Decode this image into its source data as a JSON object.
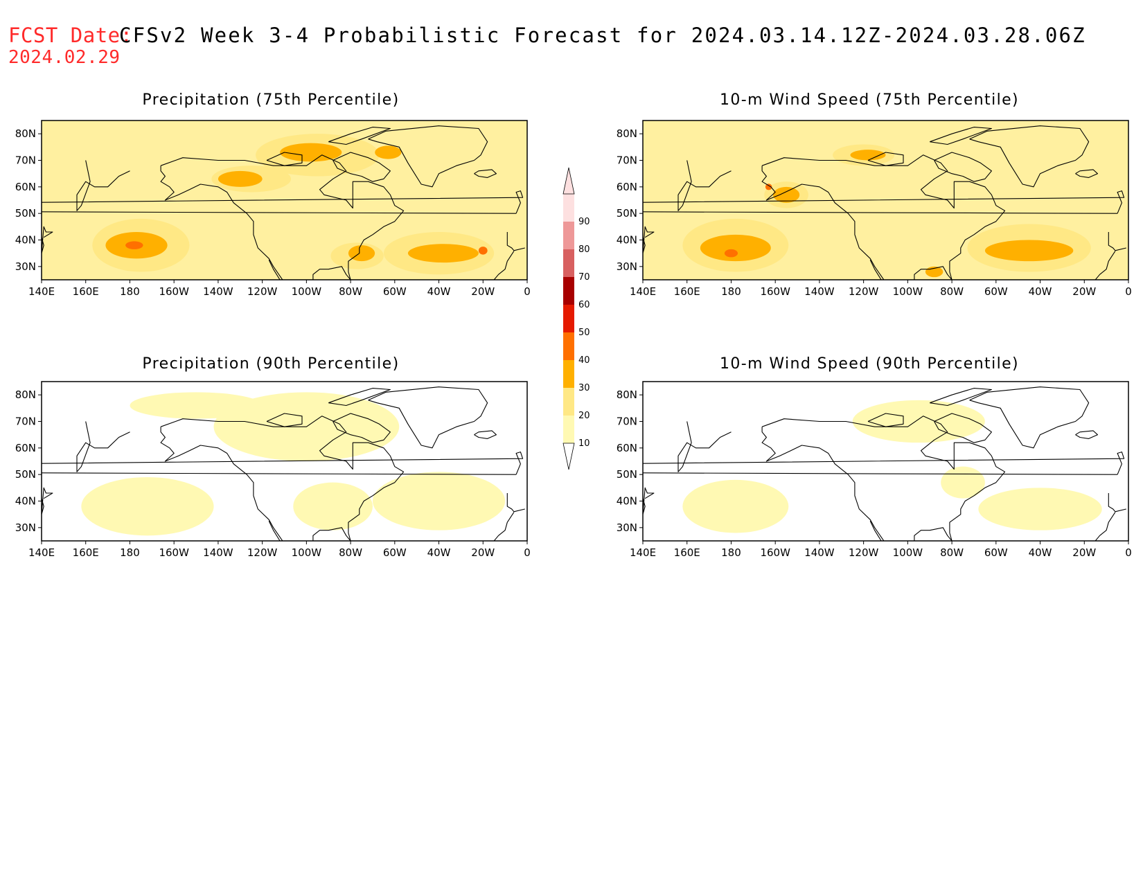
{
  "header": {
    "fcst_label": "FCST Date:",
    "fcst_date": "2024.02.29",
    "title": "CFSv2 Week 3-4 Probabilistic Forecast for 2024.03.14.12Z-2024.03.28.06Z"
  },
  "axes": {
    "x_ticks": [
      "140E",
      "160E",
      "180",
      "160W",
      "140W",
      "120W",
      "100W",
      "80W",
      "60W",
      "40W",
      "20W",
      "0"
    ],
    "y_ticks": [
      "80N",
      "70N",
      "60N",
      "50N",
      "40N",
      "30N"
    ]
  },
  "colorbar": {
    "levels": [
      "10",
      "20",
      "30",
      "40",
      "50",
      "60",
      "70",
      "80",
      "90"
    ],
    "colors": [
      "#fff9b3",
      "#ffe885",
      "#ffb000",
      "#ff7000",
      "#e51a00",
      "#a80000",
      "#d86060",
      "#ee9898",
      "#fde0e0"
    ]
  },
  "panels": [
    {
      "title": "Precipitation (75th Percentile)",
      "bg_color": "#fff0a0",
      "regions": [
        {
          "level": "20",
          "lon": -175,
          "lat": 38,
          "rlon": 22,
          "rlat": 10
        },
        {
          "level": "20",
          "lon": -95,
          "lat": 72,
          "rlon": 28,
          "rlat": 8
        },
        {
          "level": "20",
          "lon": -40,
          "lat": 35,
          "rlon": 25,
          "rlat": 8
        },
        {
          "level": "20",
          "lon": -125,
          "lat": 63,
          "rlon": 18,
          "rlat": 5
        },
        {
          "level": "20",
          "lon": -77,
          "lat": 34,
          "rlon": 12,
          "rlat": 5
        },
        {
          "level": "30",
          "lon": -177,
          "lat": 38,
          "rlon": 14,
          "rlat": 5
        },
        {
          "level": "30",
          "lon": -98,
          "lat": 73,
          "rlon": 14,
          "rlat": 3.5
        },
        {
          "level": "30",
          "lon": -38,
          "lat": 35,
          "rlon": 16,
          "rlat": 3.5
        },
        {
          "level": "30",
          "lon": -130,
          "lat": 63,
          "rlon": 10,
          "rlat": 3
        },
        {
          "level": "30",
          "lon": -63,
          "lat": 73,
          "rlon": 6,
          "rlat": 2.5
        },
        {
          "level": "30",
          "lon": -75,
          "lat": 35,
          "rlon": 6,
          "rlat": 3
        },
        {
          "level": "40",
          "lon": -178,
          "lat": 38,
          "rlon": 4,
          "rlat": 1.5
        },
        {
          "level": "40",
          "lon": -20,
          "lat": 36,
          "rlon": 2,
          "rlat": 1.5
        }
      ]
    },
    {
      "title": "10-m Wind Speed (75th Percentile)",
      "bg_color": "#fff0a0",
      "regions": [
        {
          "level": "20",
          "lon": -178,
          "lat": 38,
          "rlon": 24,
          "rlat": 10
        },
        {
          "level": "20",
          "lon": -45,
          "lat": 37,
          "rlon": 28,
          "rlat": 9
        },
        {
          "level": "20",
          "lon": -155,
          "lat": 57,
          "rlon": 10,
          "rlat": 5
        },
        {
          "level": "20",
          "lon": -120,
          "lat": 72,
          "rlon": 14,
          "rlat": 4
        },
        {
          "level": "30",
          "lon": -178,
          "lat": 37,
          "rlon": 16,
          "rlat": 5
        },
        {
          "level": "30",
          "lon": -45,
          "lat": 36,
          "rlon": 20,
          "rlat": 4
        },
        {
          "level": "30",
          "lon": -155,
          "lat": 57,
          "rlon": 6,
          "rlat": 3
        },
        {
          "level": "30",
          "lon": -118,
          "lat": 72,
          "rlon": 8,
          "rlat": 2
        },
        {
          "level": "30",
          "lon": -88,
          "lat": 28,
          "rlon": 4,
          "rlat": 2
        },
        {
          "level": "40",
          "lon": -180,
          "lat": 35,
          "rlon": 3,
          "rlat": 1.5
        },
        {
          "level": "40",
          "lon": -163,
          "lat": 60,
          "rlon": 1.5,
          "rlat": 1.2
        }
      ]
    },
    {
      "title": "Precipitation (90th Percentile)",
      "bg_color": "#ffffff",
      "regions": [
        {
          "level": "10",
          "lon": -172,
          "lat": 38,
          "rlon": 30,
          "rlat": 11
        },
        {
          "level": "10",
          "lon": -100,
          "lat": 68,
          "rlon": 42,
          "rlat": 13
        },
        {
          "level": "10",
          "lon": -40,
          "lat": 40,
          "rlon": 30,
          "rlat": 11
        },
        {
          "level": "10",
          "lon": -150,
          "lat": 76,
          "rlon": 30,
          "rlat": 5
        },
        {
          "level": "10",
          "lon": -88,
          "lat": 38,
          "rlon": 18,
          "rlat": 9
        }
      ]
    },
    {
      "title": "10-m Wind Speed (90th Percentile)",
      "bg_color": "#ffffff",
      "regions": [
        {
          "level": "10",
          "lon": -178,
          "lat": 38,
          "rlon": 24,
          "rlat": 10
        },
        {
          "level": "10",
          "lon": -40,
          "lat": 37,
          "rlon": 28,
          "rlat": 8
        },
        {
          "level": "10",
          "lon": -95,
          "lat": 70,
          "rlon": 30,
          "rlat": 8
        },
        {
          "level": "10",
          "lon": -75,
          "lat": 47,
          "rlon": 10,
          "rlat": 6
        }
      ]
    }
  ],
  "coastlines": [
    {
      "name": "north-america",
      "points": [
        [
          -166,
          68
        ],
        [
          -156,
          71
        ],
        [
          -140,
          70
        ],
        [
          -128,
          70
        ],
        [
          -115,
          68
        ],
        [
          -100,
          68
        ],
        [
          -93,
          72
        ],
        [
          -85,
          69
        ],
        [
          -82,
          66
        ],
        [
          -88,
          63
        ],
        [
          -94,
          59
        ],
        [
          -92,
          57
        ],
        [
          -82,
          55
        ],
        [
          -79,
          52
        ],
        [
          -79,
          62
        ],
        [
          -72,
          62
        ],
        [
          -65,
          60
        ],
        [
          -62,
          57
        ],
        [
          -60,
          53
        ],
        [
          -56,
          51
        ],
        [
          -60,
          47
        ],
        [
          -65,
          45
        ],
        [
          -70,
          42
        ],
        [
          -74,
          40
        ],
        [
          -76,
          37
        ],
        [
          -76,
          35
        ],
        [
          -81,
          32
        ],
        [
          -81,
          28
        ],
        [
          -80,
          25
        ],
        [
          -82,
          27
        ],
        [
          -84,
          30
        ],
        [
          -90,
          29
        ],
        [
          -94,
          29
        ],
        [
          -97,
          27
        ],
        [
          -97,
          25
        ],
        [
          -105,
          23
        ],
        [
          -110,
          24
        ],
        [
          -115,
          30
        ],
        [
          -117,
          33
        ],
        [
          -122,
          37
        ],
        [
          -124,
          42
        ],
        [
          -124,
          47
        ],
        [
          -127,
          50
        ],
        [
          -133,
          54
        ],
        [
          -136,
          58
        ],
        [
          -140,
          60
        ],
        [
          -148,
          61
        ],
        [
          -153,
          59
        ],
        [
          -158,
          57
        ],
        [
          -164,
          55
        ],
        [
          -160,
          58
        ],
        [
          -162,
          60
        ],
        [
          -166,
          62
        ],
        [
          -164,
          64
        ],
        [
          -166,
          66
        ],
        [
          -166,
          68
        ]
      ]
    },
    {
      "name": "baja-california",
      "points": [
        [
          -117,
          32.5
        ],
        [
          -115,
          29
        ],
        [
          -112,
          25
        ],
        [
          -110,
          23
        ]
      ]
    },
    {
      "name": "greenland",
      "points": [
        [
          -72,
          78
        ],
        [
          -64,
          81
        ],
        [
          -40,
          83
        ],
        [
          -22,
          82
        ],
        [
          -18,
          77
        ],
        [
          -21,
          72
        ],
        [
          -24,
          70
        ],
        [
          -32,
          68
        ],
        [
          -40,
          65
        ],
        [
          -43,
          60
        ],
        [
          -48,
          61
        ],
        [
          -51,
          65
        ],
        [
          -54,
          69
        ],
        [
          -58,
          75
        ],
        [
          -68,
          77
        ],
        [
          -72,
          78
        ]
      ]
    },
    {
      "name": "baffin-island",
      "points": [
        [
          -88,
          70
        ],
        [
          -80,
          73
        ],
        [
          -72,
          71
        ],
        [
          -67,
          69
        ],
        [
          -62,
          66
        ],
        [
          -65,
          63
        ],
        [
          -70,
          62
        ],
        [
          -75,
          64
        ],
        [
          -80,
          65
        ],
        [
          -86,
          67
        ],
        [
          -88,
          70
        ]
      ]
    },
    {
      "name": "victoria-island",
      "points": [
        [
          -118,
          70
        ],
        [
          -110,
          73
        ],
        [
          -102,
          72
        ],
        [
          -102,
          69
        ],
        [
          -110,
          68
        ],
        [
          -118,
          70
        ]
      ]
    },
    {
      "name": "ellesmere-island",
      "points": [
        [
          -90,
          77
        ],
        [
          -80,
          80
        ],
        [
          -70,
          82.5
        ],
        [
          -62,
          82
        ],
        [
          -75,
          78
        ],
        [
          -82,
          76
        ],
        [
          -90,
          77
        ]
      ]
    },
    {
      "name": "kamchatka",
      "points": [
        [
          160,
          70
        ],
        [
          162,
          62
        ],
        [
          158,
          53
        ],
        [
          156,
          51
        ],
        [
          156,
          57
        ],
        [
          160,
          62
        ],
        [
          164,
          60
        ],
        [
          170,
          60
        ],
        [
          175,
          64
        ],
        [
          180,
          66
        ]
      ]
    },
    {
      "name": "japan",
      "points": [
        [
          140,
          41
        ],
        [
          141,
          38
        ],
        [
          140,
          35
        ],
        [
          141,
          45
        ],
        [
          142,
          43
        ],
        [
          145,
          43
        ],
        [
          141,
          41
        ]
      ]
    },
    {
      "name": "iceland",
      "points": [
        [
          -24,
          65
        ],
        [
          -22,
          66
        ],
        [
          -16,
          66.5
        ],
        [
          -14,
          65
        ],
        [
          -18,
          63.5
        ],
        [
          -22,
          64
        ],
        [
          -24,
          65
        ]
      ]
    },
    {
      "name": "great-britain",
      "points": [
        [
          -5,
          50
        ],
        [
          -3,
          54
        ],
        [
          -5,
          58
        ],
        [
          -3,
          58.5
        ],
        [
          -2,
          56
        ],
        [
          0,
          53
        ],
        [
          1,
          51
        ],
        [
          -5,
          50
        ]
      ]
    },
    {
      "name": "iberia",
      "points": [
        [
          -9,
          43
        ],
        [
          -9,
          38
        ],
        [
          -7,
          37
        ],
        [
          -6,
          36
        ],
        [
          -1,
          37
        ]
      ]
    },
    {
      "name": "west-africa",
      "points": [
        [
          -6,
          35.8
        ],
        [
          -9,
          32
        ],
        [
          -10,
          29
        ],
        [
          -13,
          27
        ],
        [
          -16,
          24
        ]
      ]
    }
  ]
}
